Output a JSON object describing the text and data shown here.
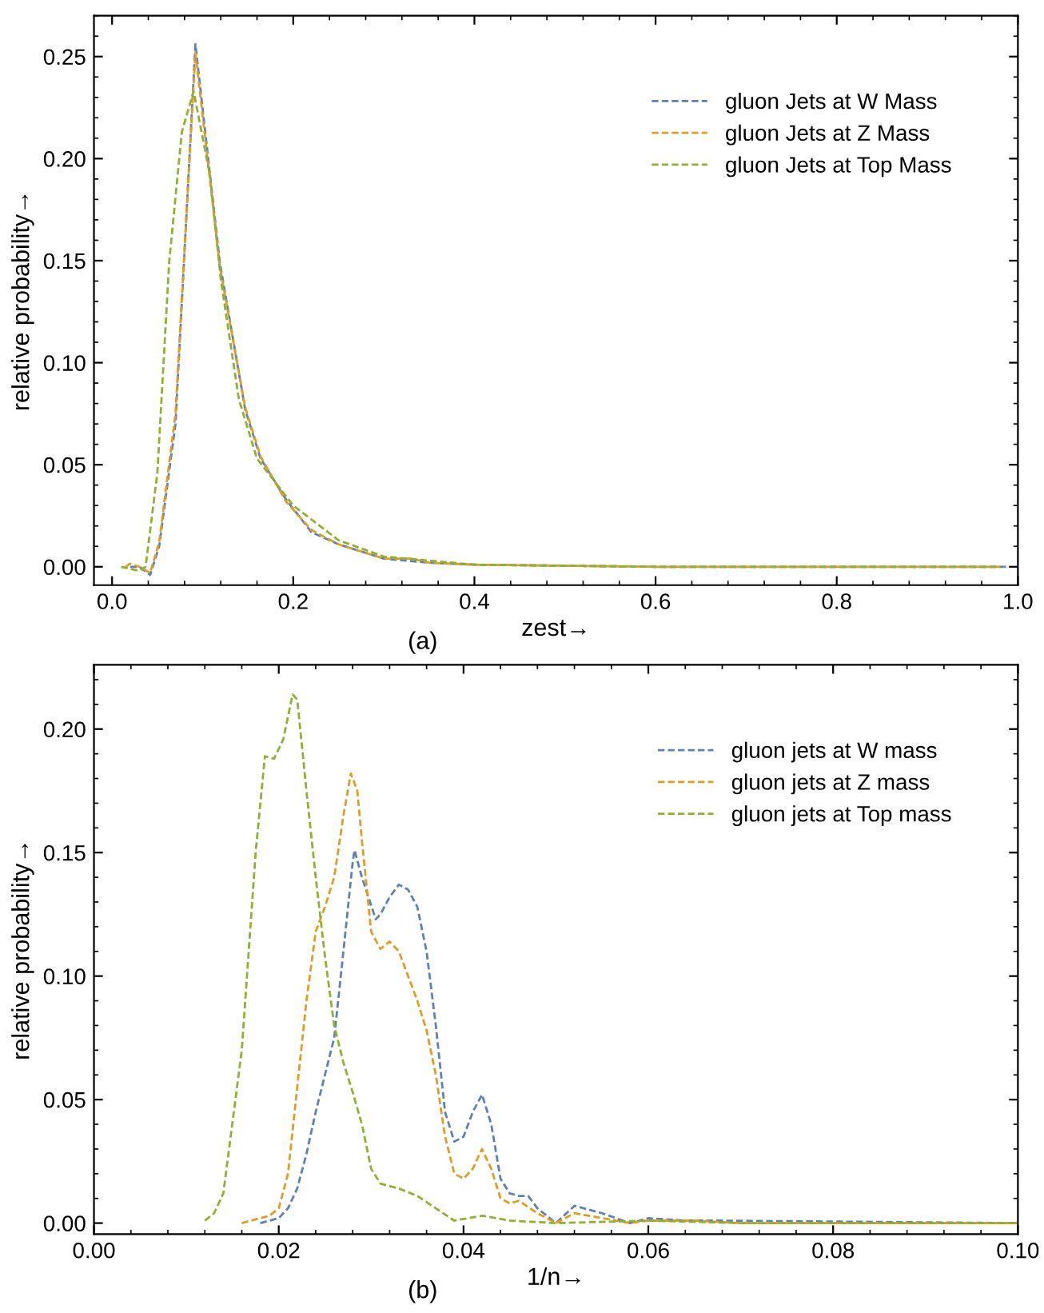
{
  "chart_data": [
    {
      "type": "line",
      "xlabel": "zest→",
      "ylabel": "relative probability→",
      "annotations": [
        "(a)"
      ],
      "line_style": "dashed",
      "legend": "top right",
      "grid": false,
      "xlim": [
        -0.02,
        1.0
      ],
      "ylim": [
        -0.009,
        0.27
      ],
      "xticks": [
        {
          "value": 0.0,
          "label": "0.0"
        },
        0.2,
        0.4,
        0.6,
        0.8,
        {
          "value": 1.0,
          "label": "1.0"
        }
      ],
      "yticks": [
        {
          "value": 0.0,
          "label": "0.00"
        },
        0.05,
        {
          "value": 0.1,
          "label": "0.10"
        },
        0.15,
        {
          "value": 0.2,
          "label": "0.20"
        },
        0.25
      ],
      "series": [
        {
          "name": "gluon Jets at W Mass",
          "color": "#5e81b5",
          "x": [
            0.02,
            0.03,
            0.042,
            0.052,
            0.07,
            0.092,
            0.119,
            0.147,
            0.164,
            0.192,
            0.22,
            0.25,
            0.3,
            0.35,
            0.4,
            0.5,
            0.6,
            0.99
          ],
          "values": [
            0,
            0,
            -0.004,
            0.01,
            0.07,
            0.256,
            0.149,
            0.077,
            0.053,
            0.033,
            0.017,
            0.011,
            0.004,
            0.002,
            0.001,
            0.0005,
            0,
            0
          ]
        },
        {
          "name": "gluon Jets at Z Mass",
          "color": "#e19c24",
          "x": [
            0.015,
            0.02,
            0.03,
            0.042,
            0.052,
            0.07,
            0.092,
            0.119,
            0.147,
            0.164,
            0.192,
            0.22,
            0.25,
            0.3,
            0.33,
            0.35,
            0.4,
            0.5,
            0.6,
            0.985
          ],
          "values": [
            0,
            0.0015,
            0,
            -0.003,
            0.012,
            0.075,
            0.252,
            0.147,
            0.078,
            0.054,
            0.032,
            0.018,
            0.011,
            0.004,
            0.004,
            0.002,
            0.001,
            0.0005,
            0,
            0
          ]
        },
        {
          "name": "gluon Jets at Top Mass",
          "color": "#8fb032",
          "x": [
            0.01,
            0.03,
            0.037,
            0.05,
            0.063,
            0.077,
            0.09,
            0.108,
            0.12,
            0.14,
            0.16,
            0.2,
            0.25,
            0.3,
            0.4,
            0.6,
            0.98
          ],
          "values": [
            0,
            -0.002,
            0,
            0.046,
            0.149,
            0.213,
            0.233,
            0.192,
            0.141,
            0.082,
            0.053,
            0.03,
            0.013,
            0.005,
            0.001,
            0,
            0
          ]
        }
      ]
    },
    {
      "type": "line",
      "xlabel": "1/n→",
      "ylabel": "relative probability→",
      "annotations": [
        "(b)"
      ],
      "line_style": "dashed",
      "legend": "top right",
      "grid": false,
      "xlim": [
        0.0,
        0.1
      ],
      "ylim": [
        -0.0045,
        0.226
      ],
      "xticks": [
        {
          "value": 0.0,
          "label": "0.00"
        },
        0.02,
        0.04,
        0.06,
        0.08,
        {
          "value": 0.1,
          "label": "0.10"
        }
      ],
      "yticks": [
        {
          "value": 0.0,
          "label": "0.00"
        },
        0.05,
        {
          "value": 0.1,
          "label": "0.10"
        },
        0.15,
        {
          "value": 0.2,
          "label": "0.20"
        }
      ],
      "series": [
        {
          "name": "gluon jets at W mass",
          "color": "#5e81b5",
          "x": [
            0.018,
            0.02,
            0.021,
            0.022,
            0.023,
            0.024,
            0.025,
            0.026,
            0.027,
            0.028,
            0.0282,
            0.029,
            0.0305,
            0.031,
            0.032,
            0.033,
            0.034,
            0.035,
            0.036,
            0.037,
            0.038,
            0.039,
            0.04,
            0.041,
            0.042,
            0.043,
            0.044,
            0.045,
            0.046,
            0.047,
            0.048,
            0.05,
            0.052,
            0.055,
            0.058,
            0.06,
            0.064,
            0.068,
            0.1
          ],
          "values": [
            0,
            0.002,
            0.006,
            0.014,
            0.028,
            0.045,
            0.06,
            0.075,
            0.11,
            0.146,
            0.151,
            0.14,
            0.123,
            0.125,
            0.132,
            0.137,
            0.135,
            0.128,
            0.11,
            0.08,
            0.045,
            0.033,
            0.035,
            0.045,
            0.052,
            0.04,
            0.018,
            0.012,
            0.011,
            0.011,
            0.006,
            0,
            0.007,
            0.004,
            0,
            0.002,
            0.001,
            0.001,
            0
          ]
        },
        {
          "name": "gluon jets at Z mass",
          "color": "#e19c24",
          "x": [
            0.016,
            0.019,
            0.02,
            0.021,
            0.022,
            0.023,
            0.024,
            0.025,
            0.026,
            0.027,
            0.0278,
            0.0285,
            0.029,
            0.03,
            0.031,
            0.032,
            0.033,
            0.034,
            0.035,
            0.036,
            0.037,
            0.038,
            0.039,
            0.04,
            0.041,
            0.042,
            0.043,
            0.044,
            0.045,
            0.046,
            0.048,
            0.05,
            0.052,
            0.055,
            0.058,
            0.06,
            0.065,
            0.07,
            0.1
          ],
          "values": [
            0,
            0.003,
            0.006,
            0.02,
            0.055,
            0.09,
            0.118,
            0.128,
            0.14,
            0.165,
            0.182,
            0.175,
            0.155,
            0.118,
            0.111,
            0.114,
            0.11,
            0.1,
            0.09,
            0.078,
            0.06,
            0.035,
            0.02,
            0.018,
            0.022,
            0.03,
            0.022,
            0.01,
            0.008,
            0.009,
            0.004,
            0,
            0.004,
            0.002,
            0,
            0.001,
            0.001,
            0,
            0
          ]
        },
        {
          "name": "gluon jets at Top mass",
          "color": "#8fb032",
          "x": [
            0.012,
            0.013,
            0.014,
            0.016,
            0.0175,
            0.0185,
            0.0195,
            0.0205,
            0.0215,
            0.022,
            0.023,
            0.024,
            0.025,
            0.026,
            0.027,
            0.028,
            0.029,
            0.03,
            0.031,
            0.033,
            0.035,
            0.037,
            0.039,
            0.042,
            0.045,
            0.05,
            0.06,
            0.07,
            0.1
          ],
          "values": [
            0.001,
            0.004,
            0.012,
            0.07,
            0.15,
            0.189,
            0.188,
            0.196,
            0.214,
            0.212,
            0.175,
            0.14,
            0.108,
            0.08,
            0.065,
            0.053,
            0.04,
            0.022,
            0.016,
            0.014,
            0.011,
            0.006,
            0.001,
            0.003,
            0.001,
            0,
            0.001,
            0,
            0
          ]
        }
      ]
    }
  ]
}
